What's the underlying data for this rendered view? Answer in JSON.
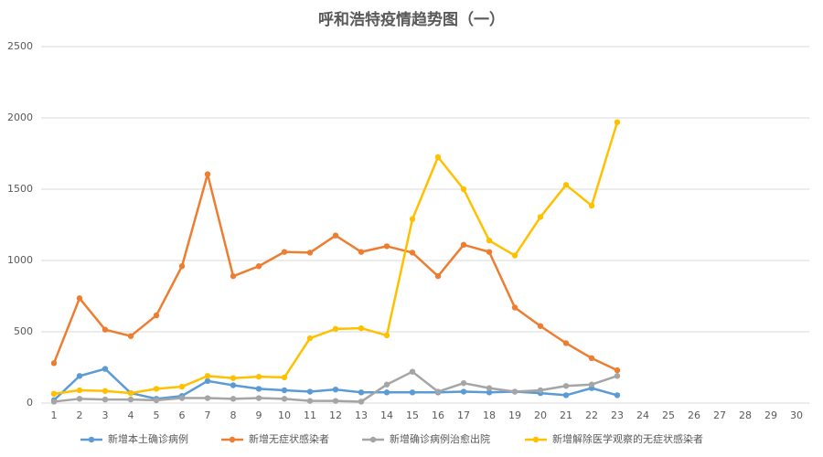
{
  "chart_data": {
    "type": "line",
    "title": "呼和浩特疫情趋势图（一）",
    "categories": [
      1,
      2,
      3,
      4,
      5,
      6,
      7,
      8,
      9,
      10,
      11,
      12,
      13,
      14,
      15,
      16,
      17,
      18,
      19,
      20,
      21,
      22,
      23,
      24,
      25,
      26,
      27,
      28,
      29,
      30
    ],
    "series": [
      {
        "name": "新增本土确诊病例",
        "color": "#5b9bd5",
        "values": [
          20,
          190,
          240,
          70,
          30,
          50,
          155,
          125,
          100,
          90,
          80,
          95,
          75,
          75,
          75,
          75,
          80,
          75,
          80,
          70,
          55,
          105,
          55,
          null,
          null,
          null,
          null,
          null,
          null,
          null
        ]
      },
      {
        "name": "新增无症状感染者",
        "color": "#ed7d31",
        "values": [
          280,
          735,
          515,
          470,
          615,
          960,
          1605,
          890,
          960,
          1060,
          1055,
          1175,
          1060,
          1100,
          1055,
          890,
          1110,
          1060,
          670,
          540,
          420,
          315,
          230,
          null,
          null,
          null,
          null,
          null,
          null,
          null
        ]
      },
      {
        "name": "新增确诊病例治愈出院",
        "color": "#a5a5a5",
        "values": [
          10,
          30,
          25,
          25,
          20,
          35,
          35,
          30,
          35,
          30,
          15,
          15,
          10,
          130,
          220,
          80,
          140,
          105,
          80,
          90,
          120,
          130,
          190,
          null,
          null,
          null,
          null,
          null,
          null,
          null
        ]
      },
      {
        "name": "新增解除医学观察的无症状感染者",
        "color": "#ffc000",
        "values": [
          65,
          90,
          85,
          70,
          100,
          115,
          190,
          175,
          185,
          180,
          455,
          520,
          525,
          475,
          1290,
          1725,
          1500,
          1140,
          1035,
          1305,
          1530,
          1385,
          1970,
          null,
          null,
          null,
          null,
          null,
          null,
          null
        ]
      }
    ],
    "ylim": [
      0,
      2500
    ],
    "yticks": [
      0,
      500,
      1000,
      1500,
      2000,
      2500
    ],
    "grid": true,
    "legend": "bottom"
  }
}
